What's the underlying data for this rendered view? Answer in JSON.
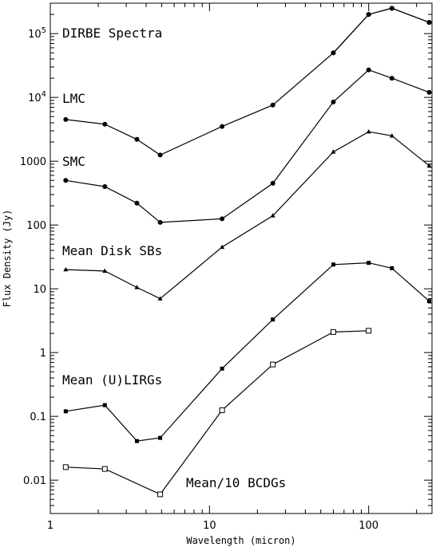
{
  "chart_data": {
    "type": "line",
    "title": "",
    "xlabel": "Wavelength (micron)",
    "ylabel": "Flux Density (Jy)",
    "xscale": "log",
    "yscale": "log",
    "xlim": [
      1,
      250
    ],
    "ylim": [
      0.003,
      300000
    ],
    "x_ticks": [
      1,
      10,
      100
    ],
    "x_tick_labels": [
      "1",
      "10",
      "100"
    ],
    "y_ticks": [
      0.01,
      0.1,
      1,
      10,
      100,
      1000,
      10000,
      100000
    ],
    "y_tick_labels": [
      "0.01",
      "0.1",
      "1",
      "10",
      "100",
      "1000",
      "10^4",
      "10^5"
    ],
    "grid": false,
    "series": [
      {
        "name": "DIRBE Spectra",
        "marker": "circle",
        "x": [
          60,
          100,
          140,
          240
        ],
        "y": [
          50000,
          200000,
          250000,
          150000
        ]
      },
      {
        "name": "LMC",
        "marker": "circle",
        "x": [
          1.25,
          2.2,
          3.5,
          4.9,
          12,
          25,
          60,
          100,
          140,
          240
        ],
        "y": [
          4500,
          3800,
          2200,
          1250,
          3500,
          7600,
          50000,
          200000,
          250000,
          150000
        ]
      },
      {
        "name": "SMC",
        "marker": "circle",
        "x": [
          1.25,
          2.2,
          3.5,
          4.9,
          12,
          25,
          60,
          100,
          140,
          240
        ],
        "y": [
          500,
          400,
          220,
          110,
          125,
          450,
          8500,
          27000,
          20000,
          12000
        ]
      },
      {
        "name": "Mean Disk SBs",
        "marker": "triangle",
        "x": [
          1.25,
          2.2,
          3.5,
          4.9,
          12,
          25,
          60,
          100,
          140,
          240
        ],
        "y": [
          20,
          19,
          10.5,
          7,
          45,
          140,
          1400,
          2900,
          2500,
          850
        ]
      },
      {
        "name": "Mean (U)LIRGs",
        "marker": "square-filled",
        "x": [
          1.25,
          2.2,
          3.5,
          4.9,
          12,
          25,
          60,
          100,
          140,
          240
        ],
        "y": [
          0.12,
          0.15,
          0.041,
          0.046,
          0.56,
          3.3,
          24,
          25.5,
          21,
          6.4
        ]
      },
      {
        "name": "Mean/10 BCDGs",
        "marker": "square-open",
        "x": [
          1.25,
          2.2,
          4.9,
          12,
          25,
          60,
          100
        ],
        "y": [
          0.016,
          0.015,
          0.006,
          0.125,
          0.65,
          2.1,
          2.2
        ]
      }
    ]
  }
}
